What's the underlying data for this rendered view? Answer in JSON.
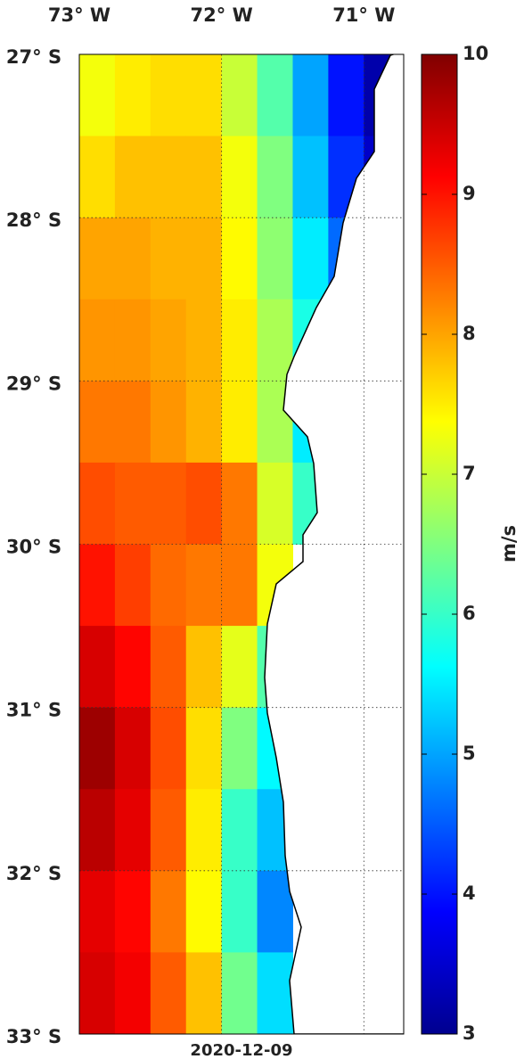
{
  "map": {
    "date": "2020-12-09",
    "lonlim": [
      -73,
      -70.72
    ],
    "latlim": [
      -33,
      -27
    ],
    "lonticks": [
      {
        "value": -73,
        "label": "73° W"
      },
      {
        "value": -72,
        "label": "72° W"
      },
      {
        "value": -71,
        "label": "71° W"
      }
    ],
    "latticks": [
      {
        "value": -27,
        "label": "27° S"
      },
      {
        "value": -28,
        "label": "28° S"
      },
      {
        "value": -29,
        "label": "29° S"
      },
      {
        "value": -30,
        "label": "30° S"
      },
      {
        "value": -31,
        "label": "31° S"
      },
      {
        "value": -32,
        "label": "32° S"
      },
      {
        "value": -33,
        "label": "33° S"
      }
    ],
    "grid": true,
    "colormap": "jet",
    "colorbar": {
      "label": "m/s",
      "lim": [
        3,
        10
      ],
      "ticks": [
        3,
        4,
        5,
        6,
        7,
        8,
        9,
        10
      ]
    },
    "lon_edges": [
      -73,
      -72.75,
      -72.5,
      -72.25,
      -72,
      -71.75,
      -71.5,
      -71.25,
      -71,
      -70.75,
      -70.5
    ],
    "lat_edges": [
      -27,
      -27.5,
      -28,
      -28.5,
      -29,
      -29.5,
      -30,
      -30.5,
      -31,
      -31.5,
      -32,
      -32.5,
      -33
    ],
    "speed": [
      [
        7.3,
        7.5,
        7.6,
        7.6,
        7.0,
        6.2,
        5.0,
        4.0,
        3.3,
        null
      ],
      [
        7.6,
        7.8,
        7.8,
        7.8,
        7.3,
        6.5,
        5.2,
        4.2,
        3.5,
        null
      ],
      [
        8.0,
        8.0,
        7.9,
        7.9,
        7.4,
        6.6,
        5.5,
        4.6,
        null,
        null
      ],
      [
        8.1,
        8.1,
        8.0,
        7.9,
        7.5,
        6.8,
        5.8,
        null,
        null,
        null
      ],
      [
        8.3,
        8.3,
        8.1,
        7.9,
        7.5,
        6.8,
        5.5,
        null,
        null,
        null
      ],
      [
        8.6,
        8.5,
        8.5,
        8.6,
        8.3,
        7.1,
        6.0,
        null,
        null,
        null
      ],
      [
        9.0,
        8.7,
        8.4,
        8.3,
        8.3,
        7.3,
        null,
        null,
        null,
        null
      ],
      [
        9.4,
        9.1,
        8.5,
        7.8,
        7.2,
        6.2,
        null,
        null,
        null,
        null
      ],
      [
        9.8,
        9.4,
        8.6,
        7.6,
        6.5,
        5.6,
        null,
        null,
        null,
        null
      ],
      [
        9.6,
        9.3,
        8.5,
        7.5,
        6.0,
        5.2,
        null,
        null,
        null,
        null
      ],
      [
        9.3,
        9.1,
        8.3,
        7.4,
        6.0,
        4.8,
        null,
        null,
        null,
        null
      ],
      [
        9.4,
        9.2,
        8.5,
        7.8,
        6.4,
        5.4,
        null,
        null,
        null,
        null
      ]
    ]
  }
}
